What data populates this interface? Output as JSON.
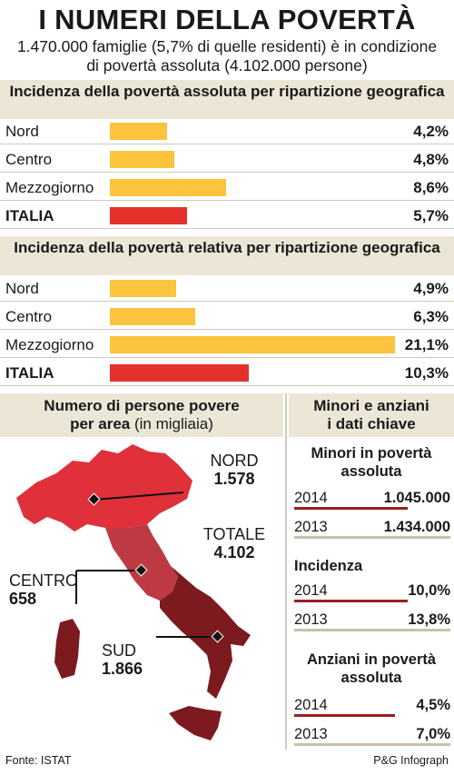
{
  "header": {
    "title": "I NUMERI DELLA POVERTÀ",
    "subtitle_line1": "1.470.000 famiglie (5,7% di quelle residenti) è in condizione",
    "subtitle_line2": "di povertà assoluta (4.102.000 persone)"
  },
  "colors": {
    "regional": "#fcc33c",
    "italia": "#e5312b",
    "panel": "#ebe6d6",
    "dark_red": "#9a1e22",
    "grey": "#c9c1ad"
  },
  "chart_data": [
    {
      "type": "bar",
      "title": "Incidenza della povertà assoluta per ripartizione geografica",
      "categories": [
        "Nord",
        "Centro",
        "Mezzogiorno",
        "ITALIA"
      ],
      "values": [
        4.2,
        4.8,
        8.6,
        5.7
      ],
      "value_labels": [
        "4,2%",
        "4,8%",
        "8,6%",
        "5,7%"
      ]
    },
    {
      "type": "bar",
      "title": "Incidenza della povertà relativa per ripartizione geografica",
      "categories": [
        "Nord",
        "Centro",
        "Mezzogiorno",
        "ITALIA"
      ],
      "values": [
        4.9,
        6.3,
        21.1,
        10.3
      ],
      "value_labels": [
        "4,9%",
        "6,3%",
        "21,1%",
        "10,3%"
      ]
    },
    {
      "type": "bar",
      "title": "Minori in povertà assoluta",
      "categories": [
        "2014",
        "2013"
      ],
      "values": [
        1045000,
        1434000
      ],
      "value_labels": [
        "1.045.000",
        "1.434.000"
      ]
    },
    {
      "type": "bar",
      "title": "Incidenza",
      "categories": [
        "2014",
        "2013"
      ],
      "values": [
        10.0,
        13.8
      ],
      "value_labels": [
        "10,0%",
        "13,8%"
      ]
    },
    {
      "type": "bar",
      "title": "Anziani in povertà assoluta",
      "categories": [
        "2014",
        "2013"
      ],
      "values": [
        4.5,
        7.0
      ],
      "value_labels": [
        "4,5%",
        "7,0%"
      ]
    }
  ],
  "map": {
    "title_bold": "Numero di persone povere",
    "title_bold2": "per area",
    "title_note": " (in migliaia)",
    "nord": {
      "label": "NORD",
      "value": "1.578"
    },
    "centro": {
      "label": "CENTRO",
      "value": "658"
    },
    "sud": {
      "label": "SUD",
      "value": "1.866"
    },
    "totale": {
      "label": "TOTALE",
      "value": "4.102"
    }
  },
  "side": {
    "title_line1": "Minori e anziani",
    "title_line2": "i dati chiave",
    "minori_line1": "Minori in povertà",
    "minori_line2": "assoluta",
    "incidenza": "Incidenza",
    "anziani_line1": "Anziani in povertà",
    "anziani_line2": "assoluta"
  },
  "footer": {
    "source": "Fonte: ISTAT",
    "credit": "P&G Infograph"
  }
}
